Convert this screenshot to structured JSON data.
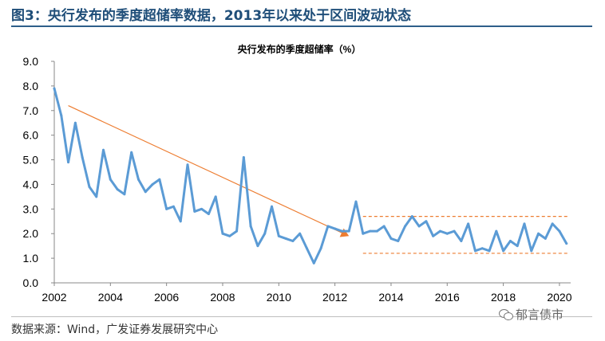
{
  "figure": {
    "title": "图3：央行发布的季度超储率数据，2013年以来处于区间波动状态",
    "source": "数据来源：Wind，广发证券发展研究中心",
    "watermark": "郁言债市",
    "watermark_icon": "wechat-icon"
  },
  "chart_data": {
    "type": "line",
    "title": "央行发布的季度超储率（%）",
    "xlabel": "",
    "ylabel": "",
    "ylim": [
      0,
      9
    ],
    "yticks": [
      "0.0",
      "1.0",
      "2.0",
      "3.0",
      "4.0",
      "5.0",
      "6.0",
      "7.0",
      "8.0",
      "9.0"
    ],
    "xlim": [
      2002,
      2020.4
    ],
    "xticks": [
      "2002",
      "2004",
      "2006",
      "2008",
      "2010",
      "2012",
      "2014",
      "2016",
      "2018",
      "2020"
    ],
    "grid": false,
    "legend": "none",
    "line_color": "#5b9bd5",
    "trend_color": "#ed7d31",
    "series": [
      {
        "x": [
          2002.0,
          2002.25,
          2002.5,
          2002.75,
          2003.0,
          2003.25,
          2003.5,
          2003.75,
          2004.0,
          2004.25,
          2004.5,
          2004.75,
          2005.0,
          2005.25,
          2005.5,
          2005.75,
          2006.0,
          2006.25,
          2006.5,
          2006.75,
          2007.0,
          2007.25,
          2007.5,
          2007.75,
          2008.0,
          2008.25,
          2008.5,
          2008.75,
          2009.0,
          2009.25,
          2009.5,
          2009.75,
          2010.0,
          2010.25,
          2010.5,
          2010.75,
          2011.0,
          2011.25,
          2011.5,
          2011.75,
          2012.0,
          2012.25,
          2012.5,
          2012.75,
          2013.0,
          2013.25,
          2013.5,
          2013.75,
          2014.0,
          2014.25,
          2014.5,
          2014.75,
          2015.0,
          2015.25,
          2015.5,
          2015.75,
          2016.0,
          2016.25,
          2016.5,
          2016.75,
          2017.0,
          2017.25,
          2017.5,
          2017.75,
          2018.0,
          2018.25,
          2018.5,
          2018.75,
          2019.0,
          2019.25,
          2019.5,
          2019.75,
          2020.0,
          2020.25
        ],
        "values": [
          7.9,
          6.8,
          4.9,
          6.5,
          5.1,
          3.9,
          3.5,
          5.4,
          4.2,
          3.8,
          3.6,
          5.3,
          4.2,
          3.7,
          4.0,
          4.2,
          3.0,
          3.1,
          2.5,
          4.8,
          2.9,
          3.0,
          2.8,
          3.5,
          2.0,
          1.9,
          2.1,
          5.1,
          2.3,
          1.5,
          2.0,
          3.1,
          1.9,
          1.8,
          1.7,
          2.0,
          1.4,
          0.8,
          1.4,
          2.3,
          2.2,
          2.1,
          2.1,
          3.3,
          2.0,
          2.1,
          2.1,
          2.3,
          1.8,
          1.7,
          2.3,
          2.7,
          2.3,
          2.5,
          1.9,
          2.1,
          2.0,
          2.1,
          1.7,
          2.4,
          1.3,
          1.4,
          1.3,
          2.1,
          1.3,
          1.7,
          1.5,
          2.4,
          1.3,
          2.0,
          1.8,
          2.4,
          2.1,
          1.6
        ]
      }
    ],
    "trend_line": {
      "x": [
        2002.5,
        2012.5
      ],
      "y": [
        7.2,
        1.9
      ]
    },
    "band": {
      "x": [
        2013.0,
        2020.3
      ],
      "upper": 2.7,
      "lower": 1.2
    }
  }
}
